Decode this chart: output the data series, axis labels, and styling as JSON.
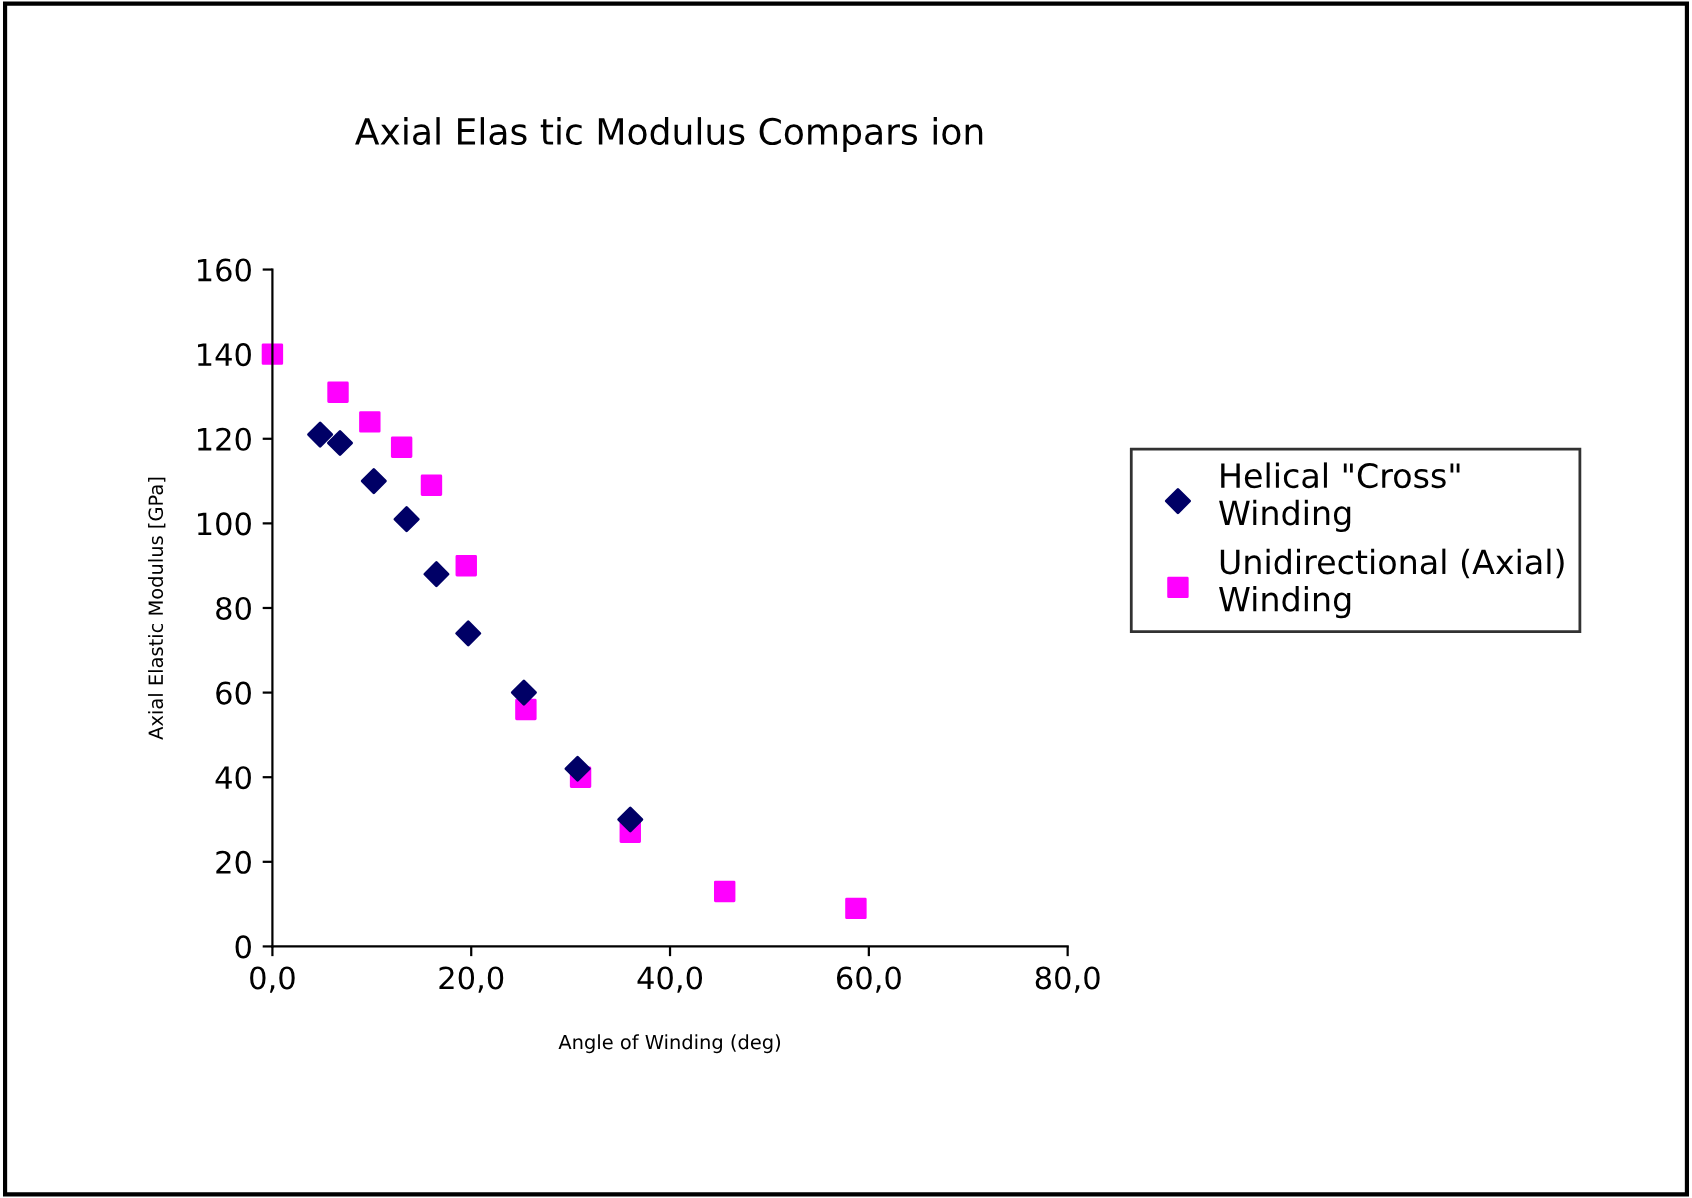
{
  "chart_data": {
    "type": "scatter",
    "title": "Axial Elas tic Modulus Compars ion",
    "xlabel": "Angle of Winding (deg)",
    "ylabel": "Axial Elastic Modulus [GPa]",
    "xlim": [
      0,
      80
    ],
    "ylim": [
      0,
      160
    ],
    "xticks": [
      {
        "value": 0,
        "label": "0,0"
      },
      {
        "value": 20,
        "label": "20,0"
      },
      {
        "value": 40,
        "label": "40,0"
      },
      {
        "value": 60,
        "label": "60,0"
      },
      {
        "value": 80,
        "label": "80,0"
      }
    ],
    "yticks": [
      0,
      20,
      40,
      60,
      80,
      100,
      120,
      140,
      160
    ],
    "grid": false,
    "legend": "right",
    "series": [
      {
        "name": "Helical \"Cross\" Winding",
        "color": "#000066",
        "marker": "diamond",
        "x": [
          4.8,
          6.8,
          10.2,
          13.5,
          16.5,
          19.7,
          25.3,
          30.7,
          36
        ],
        "values": [
          121,
          119,
          110,
          101,
          88,
          74,
          60,
          42,
          30
        ]
      },
      {
        "name": "Unidirectional (Axial) Winding",
        "color": "#ff00ff",
        "marker": "square",
        "x": [
          0,
          6.6,
          9.8,
          13,
          16,
          19.5,
          25.5,
          31,
          36,
          45.5,
          58.7
        ],
        "values": [
          140,
          131,
          124,
          118,
          109,
          90,
          56,
          40,
          27,
          13,
          9
        ]
      }
    ]
  }
}
